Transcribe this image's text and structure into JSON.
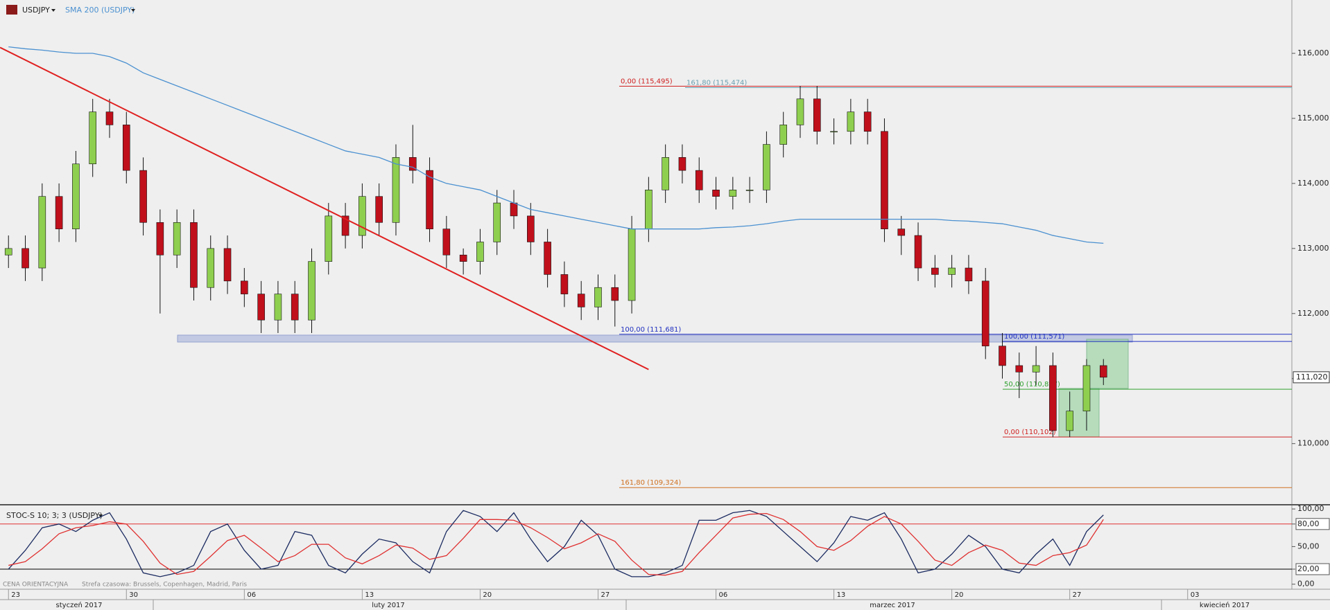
{
  "header": {
    "symbol": "USDJPY",
    "sma_label": "SMA 200 (USDJPY)",
    "stoch_label": "STOC-S 10; 3; 3 (USDJPY)",
    "footer_price_note": "CENA ORIENTACYJNA",
    "footer_timezone": "Strefa czasowa: Brussels, Copenhagen, Madrid, Paris"
  },
  "chart_data": [
    {
      "type": "candlestick",
      "up_color": "#8fcf4f",
      "down_color": "#c0101c",
      "categories": [
        "23",
        null,
        null,
        null,
        null,
        null,
        null,
        "30",
        null,
        null,
        null,
        null,
        null,
        null,
        "06",
        null,
        null,
        null,
        null,
        null,
        null,
        "13",
        null,
        null,
        null,
        null,
        null,
        null,
        "20",
        null,
        null,
        null,
        null,
        null,
        null,
        "27",
        null,
        null,
        null,
        null,
        null,
        null,
        "06",
        null,
        null,
        null,
        null,
        null,
        null,
        "13",
        null,
        null,
        null,
        null,
        null,
        null,
        "20",
        null,
        null,
        null,
        null,
        null,
        null,
        "27",
        null,
        null,
        null,
        null,
        null,
        null,
        "03"
      ],
      "x_groups": [
        "styczeń 2017",
        "luty 2017",
        "marzec 2017",
        "kwiecień 2017"
      ],
      "open": [
        112.9,
        113.0,
        112.7,
        113.8,
        113.3,
        114.3,
        115.1,
        114.9,
        114.2,
        113.4,
        112.9,
        113.4,
        112.4,
        113.0,
        112.5,
        112.3,
        111.9,
        112.3,
        111.9,
        112.8,
        113.5,
        113.2,
        113.8,
        113.4,
        114.4,
        114.2,
        113.3,
        112.9,
        112.8,
        113.1,
        113.7,
        113.5,
        113.1,
        112.6,
        112.3,
        112.1,
        112.4,
        112.2,
        113.3,
        113.9,
        114.4,
        114.2,
        113.9,
        113.8,
        113.9,
        113.9,
        114.6,
        114.9,
        115.3,
        114.8,
        114.8,
        115.1,
        114.8,
        113.3,
        113.2,
        112.7,
        112.6,
        112.7,
        112.5,
        111.5,
        111.2,
        111.1,
        111.2,
        110.2,
        110.5,
        111.2,
        null,
        null,
        null,
        null,
        null
      ],
      "high": [
        113.2,
        113.2,
        114.0,
        114.0,
        114.5,
        115.3,
        115.3,
        115.1,
        114.4,
        113.6,
        113.6,
        113.6,
        113.2,
        113.2,
        112.7,
        112.5,
        112.5,
        112.5,
        113.0,
        113.7,
        113.7,
        114.0,
        114.0,
        114.6,
        114.9,
        114.4,
        113.5,
        113.0,
        113.3,
        113.9,
        113.9,
        113.7,
        113.3,
        112.8,
        112.5,
        112.6,
        112.6,
        113.5,
        114.1,
        114.6,
        114.6,
        114.4,
        114.1,
        114.1,
        114.1,
        114.8,
        115.1,
        115.5,
        115.5,
        115.0,
        115.3,
        115.3,
        115.0,
        113.5,
        113.4,
        112.9,
        112.9,
        112.9,
        112.7,
        111.7,
        111.4,
        111.5,
        111.4,
        110.8,
        111.3,
        111.3,
        null,
        null,
        null,
        null,
        null
      ],
      "low": [
        112.7,
        112.5,
        112.5,
        113.1,
        113.1,
        114.1,
        114.7,
        114.0,
        113.2,
        112.0,
        112.7,
        112.2,
        112.2,
        112.3,
        112.1,
        111.7,
        111.7,
        111.7,
        111.7,
        112.6,
        113.0,
        113.0,
        113.2,
        113.2,
        114.0,
        113.1,
        112.7,
        112.6,
        112.6,
        112.9,
        113.3,
        112.9,
        112.4,
        112.1,
        111.9,
        111.9,
        111.8,
        112.0,
        113.1,
        113.7,
        114.0,
        113.7,
        113.6,
        113.6,
        113.7,
        113.7,
        114.4,
        114.7,
        114.6,
        114.6,
        114.6,
        114.6,
        113.1,
        112.9,
        112.5,
        112.4,
        112.4,
        112.3,
        111.3,
        111.0,
        110.7,
        110.9,
        110.1,
        110.1,
        110.2,
        110.9,
        null,
        null,
        null,
        null,
        null
      ],
      "close": [
        113.0,
        112.7,
        113.8,
        113.3,
        114.3,
        115.1,
        114.9,
        114.2,
        113.4,
        112.9,
        113.4,
        112.4,
        113.0,
        112.5,
        112.3,
        111.9,
        112.3,
        111.9,
        112.8,
        113.5,
        113.2,
        113.8,
        113.4,
        114.4,
        114.2,
        113.3,
        112.9,
        112.8,
        113.1,
        113.7,
        113.5,
        113.1,
        112.6,
        112.3,
        112.1,
        112.4,
        112.2,
        113.3,
        113.9,
        114.4,
        114.2,
        113.9,
        113.8,
        113.9,
        113.9,
        114.6,
        114.9,
        115.3,
        114.8,
        114.8,
        115.1,
        114.8,
        113.3,
        113.2,
        112.7,
        112.6,
        112.7,
        112.5,
        111.5,
        111.2,
        111.1,
        111.2,
        110.2,
        110.5,
        111.2,
        111.02,
        null,
        null,
        null,
        null,
        null
      ],
      "series": [
        {
          "name": "SMA 200 (USDJPY)",
          "color": "#4a90d0",
          "values": [
            116.1,
            116.07,
            116.05,
            116.02,
            116.0,
            116.0,
            115.95,
            115.85,
            115.7,
            115.6,
            115.5,
            115.4,
            115.3,
            115.2,
            115.1,
            115.0,
            114.9,
            114.8,
            114.7,
            114.6,
            114.5,
            114.45,
            114.4,
            114.3,
            114.25,
            114.1,
            114.0,
            113.95,
            113.9,
            113.8,
            113.7,
            113.6,
            113.55,
            113.5,
            113.45,
            113.4,
            113.35,
            113.3,
            113.3,
            113.3,
            113.3,
            113.3,
            113.32,
            113.33,
            113.35,
            113.38,
            113.42,
            113.45,
            113.45,
            113.45,
            113.45,
            113.45,
            113.45,
            113.45,
            113.45,
            113.45,
            113.43,
            113.42,
            113.4,
            113.38,
            113.33,
            113.28,
            113.2,
            113.15,
            113.1,
            113.08,
            null,
            null,
            null,
            null,
            null
          ]
        }
      ],
      "trendline": {
        "color": "#e02020",
        "x": [
          -0.5,
          38
        ],
        "y": [
          116.09,
          111.14
        ]
      },
      "levels": [
        {
          "label": "0,00 (115,495)",
          "value": 115.495,
          "color": "#d02020"
        },
        {
          "label": "161,80 (115,474)",
          "value": 115.474,
          "color": "#6aa0b0"
        },
        {
          "label": "100,00 (111,681)",
          "value": 111.681,
          "color": "#2030c0"
        },
        {
          "label": "161,80 (109,324)",
          "value": 109.324,
          "color": "#d07020"
        },
        {
          "label": "100,00 (111,571)",
          "value": 111.571,
          "color": "#2030c0"
        },
        {
          "label": "50,00 (110,837)",
          "value": 110.837,
          "color": "#30a030"
        },
        {
          "label": "0,00 (110,102)",
          "value": 110.102,
          "color": "#d02020"
        }
      ],
      "last_price": {
        "value": 111.02,
        "label": "111,020"
      },
      "ylim": [
        109.06,
        116.82
      ],
      "yticks": [
        {
          "value": 110,
          "label": "110,000"
        },
        {
          "value": 111,
          "label": "111,000"
        },
        {
          "value": 112,
          "label": "112,000"
        },
        {
          "value": 113,
          "label": "113,000"
        },
        {
          "value": 114,
          "label": "114,000"
        },
        {
          "value": 115,
          "label": "115,000"
        },
        {
          "value": 116,
          "label": "116,000"
        }
      ]
    },
    {
      "type": "line",
      "series": [
        {
          "name": "%K",
          "color": "#1a2a60",
          "values": [
            20,
            45,
            75,
            80,
            70,
            85,
            95,
            60,
            15,
            10,
            15,
            25,
            70,
            80,
            45,
            20,
            25,
            70,
            65,
            25,
            15,
            40,
            60,
            55,
            30,
            15,
            70,
            98,
            90,
            70,
            95,
            60,
            30,
            50,
            85,
            65,
            20,
            10,
            10,
            15,
            25,
            85,
            85,
            95,
            98,
            90,
            70,
            50,
            30,
            55,
            90,
            85,
            95,
            60,
            15,
            20,
            40,
            65,
            50,
            20,
            15,
            40,
            60,
            25,
            70,
            92,
            null,
            null,
            null,
            null,
            null
          ]
        },
        {
          "name": "%D",
          "color": "#e03030",
          "values": [
            25,
            30,
            47,
            67,
            75,
            78,
            83,
            80,
            57,
            28,
            13,
            17,
            37,
            58,
            65,
            48,
            30,
            38,
            53,
            53,
            35,
            27,
            38,
            52,
            48,
            33,
            38,
            61,
            86,
            86,
            85,
            75,
            62,
            47,
            55,
            67,
            57,
            32,
            13,
            12,
            17,
            42,
            65,
            88,
            93,
            94,
            86,
            70,
            50,
            45,
            58,
            77,
            90,
            80,
            57,
            32,
            25,
            42,
            52,
            45,
            28,
            25,
            38,
            42,
            52,
            86,
            null,
            null,
            null,
            null,
            null
          ]
        }
      ],
      "bands": [
        {
          "value": 80,
          "color": "#e03030"
        },
        {
          "value": 20,
          "color": "#000000"
        }
      ],
      "ylim": [
        -6.7,
        105.6
      ],
      "yticks": [
        {
          "value": 0,
          "label": "0,00"
        },
        {
          "value": 20,
          "label": "20,00"
        },
        {
          "value": 50,
          "label": "50,00"
        },
        {
          "value": 80,
          "label": "80,00"
        },
        {
          "value": 100,
          "label": "100,00"
        }
      ]
    }
  ]
}
